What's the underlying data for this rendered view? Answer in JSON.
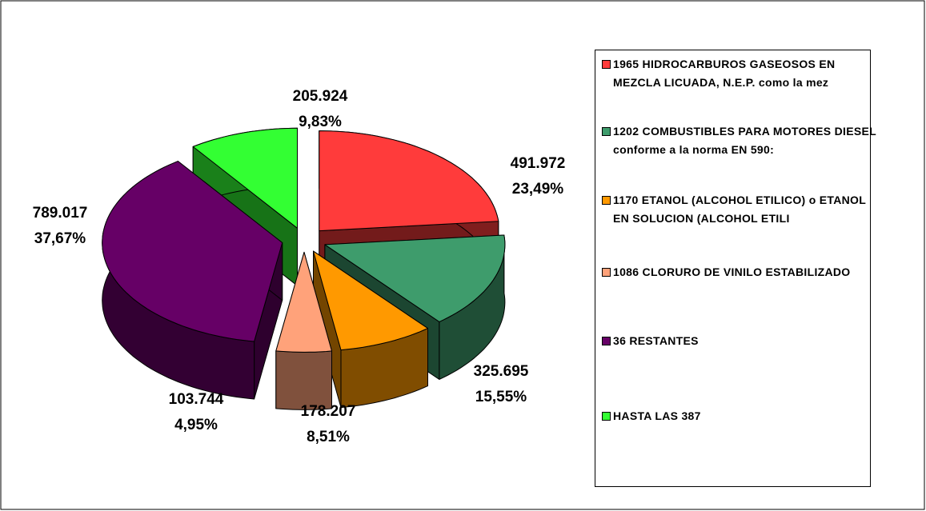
{
  "chart_data": {
    "type": "pie",
    "categories": [
      "1965 HIDROCARBUROS GASEOSOS EN MEZCLA LICUADA, N.E.P. como la mez",
      "1202 COMBUSTIBLES PARA MOTORES DIESEL conforme a la norma EN 590:",
      "1170 ETANOL (ALCOHOL ETILICO) o ETANOL EN SOLUCION (ALCOHOL ETILI",
      "1086 CLORURO DE VINILO ESTABILIZADO",
      "36 RESTANTES",
      "HASTA LAS 387"
    ],
    "values": [
      491972,
      325695,
      178207,
      103744,
      789017,
      205924
    ],
    "value_labels": [
      "491.972",
      "325.695",
      "178.207",
      "103.744",
      "789.017",
      "205.924"
    ],
    "percentages": [
      23.49,
      15.55,
      8.51,
      4.95,
      37.67,
      9.83
    ],
    "percent_labels": [
      "23,49%",
      "15,55%",
      "8,51%",
      "4,95%",
      "37,67%",
      "9,83%"
    ],
    "colors": [
      "#ff3b3b",
      "#3e9c6c",
      "#ff9900",
      "#ffa27a",
      "#660066",
      "#33ff33"
    ],
    "legend": "right"
  }
}
